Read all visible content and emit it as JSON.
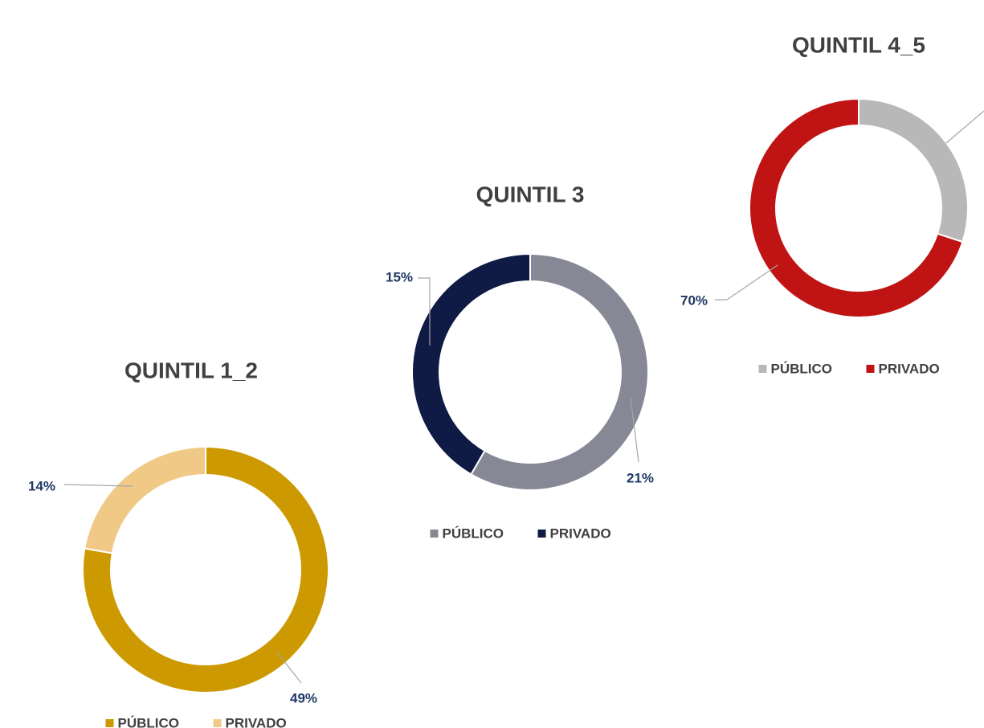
{
  "chart_data": [
    {
      "type": "donut",
      "title": "QUINTIL 1_2",
      "categories": [
        "PÚBLICO",
        "PRIVADO"
      ],
      "values": [
        49,
        14
      ],
      "value_labels": [
        "49%",
        "14%"
      ],
      "colors": [
        "#cc9a00",
        "#f0c987"
      ]
    },
    {
      "type": "donut",
      "title": "QUINTIL 3",
      "categories": [
        "PÚBLICO",
        "PRIVADO"
      ],
      "values": [
        21,
        15
      ],
      "value_labels": [
        "21%",
        "15%"
      ],
      "colors": [
        "#868896",
        "#0f1a45"
      ]
    },
    {
      "type": "donut",
      "title": "QUINTIL 4_5",
      "categories": [
        "PÚBLICO",
        "PRIVADO"
      ],
      "values": [
        30,
        70
      ],
      "value_labels": [
        null,
        "70%"
      ],
      "colors": [
        "#b8b8b8",
        "#c01414"
      ]
    }
  ]
}
